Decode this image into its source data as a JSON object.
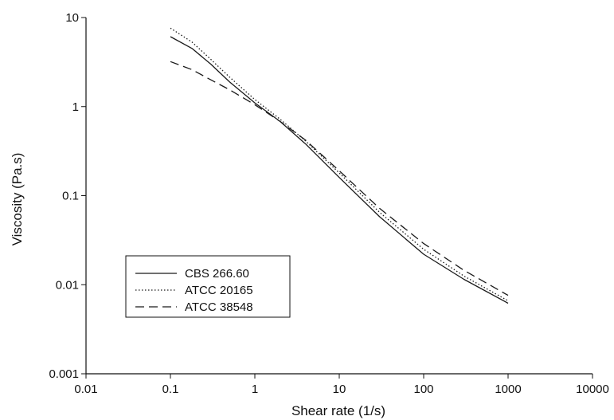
{
  "chart_data": {
    "type": "line",
    "title": "",
    "xlabel": "Shear rate (1/s)",
    "ylabel": "Viscosity (Pa.s)",
    "xscale": "log",
    "yscale": "log",
    "xlim": [
      0.01,
      10000
    ],
    "ylim": [
      0.001,
      10
    ],
    "x_ticks": [
      "0.01",
      "0.1",
      "1",
      "10",
      "100",
      "1000",
      "10000"
    ],
    "y_ticks": [
      "0.001",
      "0.01",
      "0.1",
      "1",
      "10"
    ],
    "grid": false,
    "legend_position": "lower-left",
    "series": [
      {
        "name": "CBS 266.60",
        "line_style": "solid",
        "x": [
          0.1,
          0.18,
          0.3,
          0.5,
          1,
          2,
          4,
          10,
          30,
          100,
          300,
          1000
        ],
        "y": [
          6.1,
          4.5,
          3.0,
          1.9,
          1.1,
          0.68,
          0.38,
          0.16,
          0.058,
          0.022,
          0.0115,
          0.0062
        ]
      },
      {
        "name": "ATCC 20165",
        "line_style": "dotted",
        "x": [
          0.1,
          0.18,
          0.3,
          0.5,
          1,
          2,
          4,
          10,
          30,
          100,
          300,
          1000
        ],
        "y": [
          7.6,
          5.3,
          3.4,
          2.15,
          1.2,
          0.72,
          0.41,
          0.18,
          0.065,
          0.025,
          0.0125,
          0.0066
        ]
      },
      {
        "name": "ATCC 38548",
        "line_style": "dashed",
        "x": [
          0.1,
          0.18,
          0.3,
          0.5,
          1,
          2,
          4,
          10,
          30,
          100,
          300,
          1000
        ],
        "y": [
          3.2,
          2.6,
          2.0,
          1.55,
          1.05,
          0.68,
          0.42,
          0.19,
          0.072,
          0.029,
          0.0145,
          0.0076
        ]
      }
    ]
  },
  "colors": {
    "line": "#1a1a1a",
    "axis": "#111111",
    "background": "#ffffff"
  }
}
